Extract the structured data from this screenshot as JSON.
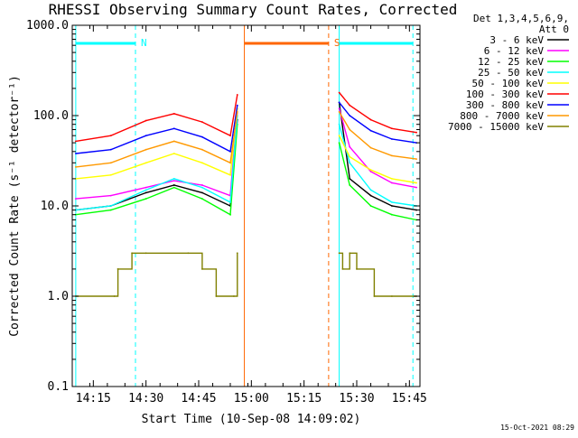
{
  "chart_data": {
    "type": "line",
    "title": "RHESSI Observing Summary Count Rates, Corrected",
    "xlabel": "Start Time (10-Sep-08 14:09:02)",
    "ylabel": "Corrected Count Rate (s⁻¹ detector⁻¹)",
    "yscale": "log",
    "xlim": [
      "14:09",
      "15:48"
    ],
    "ylim": [
      0.1,
      1000
    ],
    "x_ticks": [
      "14:15",
      "14:30",
      "14:45",
      "15:00",
      "15:15",
      "15:30",
      "15:45"
    ],
    "y_ticks": [
      "0.1",
      "1.0",
      "10.0",
      "100.0",
      "1000.0"
    ],
    "legend_header": [
      "Det 1,3,4,5,6,9,",
      "Att 0"
    ],
    "legend_position": "right",
    "series": [
      {
        "name": "3 - 6 keV",
        "color": "#000000",
        "x": [
          "14:10",
          "14:20",
          "14:30",
          "14:38",
          "14:46",
          "14:54",
          "14:56",
          "15:25",
          "15:28",
          "15:34",
          "15:40",
          "15:47"
        ],
        "y": [
          9,
          10,
          14,
          17,
          14,
          10,
          90,
          140,
          20,
          13,
          10,
          9
        ]
      },
      {
        "name": "6 - 12 keV",
        "color": "#ff00ff",
        "x": [
          "14:10",
          "14:20",
          "14:30",
          "14:38",
          "14:46",
          "14:54",
          "14:56",
          "15:25",
          "15:28",
          "15:34",
          "15:40",
          "15:47"
        ],
        "y": [
          12,
          13,
          16,
          19,
          17,
          13,
          110,
          120,
          45,
          24,
          18,
          16
        ]
      },
      {
        "name": "12 - 25 keV",
        "color": "#00ff00",
        "x": [
          "14:10",
          "14:20",
          "14:30",
          "14:38",
          "14:46",
          "14:54",
          "14:56",
          "15:25",
          "15:28",
          "15:34",
          "15:40",
          "15:47"
        ],
        "y": [
          8,
          9,
          12,
          16,
          12,
          8,
          80,
          50,
          17,
          10,
          8,
          7
        ]
      },
      {
        "name": "25 - 50 keV",
        "color": "#00ffff",
        "x": [
          "14:10",
          "14:20",
          "14:30",
          "14:38",
          "14:46",
          "14:54",
          "14:56",
          "15:25",
          "15:28",
          "15:34",
          "15:40",
          "15:47"
        ],
        "y": [
          9,
          10,
          15,
          20,
          16,
          11,
          100,
          80,
          30,
          15,
          11,
          10
        ]
      },
      {
        "name": "50 - 100 keV",
        "color": "#ffff00",
        "x": [
          "14:10",
          "14:20",
          "14:30",
          "14:38",
          "14:46",
          "14:54",
          "14:56",
          "15:25",
          "15:28",
          "15:34",
          "15:40",
          "15:47"
        ],
        "y": [
          20,
          22,
          30,
          38,
          30,
          22,
          120,
          60,
          35,
          25,
          20,
          18
        ]
      },
      {
        "name": "100 - 300 keV",
        "color": "#ff0000",
        "x": [
          "14:10",
          "14:20",
          "14:30",
          "14:38",
          "14:46",
          "14:54",
          "14:56",
          "15:25",
          "15:28",
          "15:34",
          "15:40",
          "15:47"
        ],
        "y": [
          52,
          60,
          88,
          105,
          85,
          60,
          170,
          180,
          130,
          90,
          72,
          65
        ]
      },
      {
        "name": "300 - 800 keV",
        "color": "#0000ff",
        "x": [
          "14:10",
          "14:20",
          "14:30",
          "14:38",
          "14:46",
          "14:54",
          "14:56",
          "15:25",
          "15:28",
          "15:34",
          "15:40",
          "15:47"
        ],
        "y": [
          38,
          42,
          60,
          72,
          58,
          40,
          130,
          140,
          100,
          68,
          55,
          50
        ]
      },
      {
        "name": "800 - 7000 keV",
        "color": "#ff9900",
        "x": [
          "14:10",
          "14:20",
          "14:30",
          "14:38",
          "14:46",
          "14:54",
          "14:56",
          "15:25",
          "15:28",
          "15:34",
          "15:40",
          "15:47"
        ],
        "y": [
          27,
          30,
          42,
          52,
          42,
          30,
          110,
          110,
          70,
          44,
          36,
          33
        ]
      },
      {
        "name": "7000 - 15000 keV",
        "color": "#808000",
        "x": [
          "14:10",
          "14:21",
          "14:22",
          "14:26",
          "14:30",
          "14:42",
          "14:46",
          "14:50",
          "14:55",
          "14:56",
          "15:25",
          "15:26",
          "15:28",
          "15:30",
          "15:35",
          "15:40",
          "15:47"
        ],
        "y": [
          1,
          1,
          2,
          3,
          3,
          3,
          2,
          1,
          1,
          3,
          3,
          2,
          3,
          2,
          1,
          1,
          1
        ]
      }
    ],
    "annotations": [
      {
        "label": "N",
        "color": "#00ffff",
        "x_start": "14:10",
        "x_end": "14:27"
      },
      {
        "label": "S",
        "color": "#ff6600",
        "x_start": "14:58",
        "x_end": "15:22"
      },
      {
        "label": "",
        "color": "#00ffff",
        "x_start": "15:25",
        "x_end": "15:46"
      }
    ],
    "vertical_markers": [
      {
        "x": "14:10",
        "color": "#00ffff",
        "style": "solid"
      },
      {
        "x": "14:27",
        "color": "#00ffff",
        "style": "dashed"
      },
      {
        "x": "14:58",
        "color": "#ff6600",
        "style": "solid"
      },
      {
        "x": "15:22",
        "color": "#ff6600",
        "style": "dashed"
      },
      {
        "x": "15:25",
        "color": "#00ffff",
        "style": "solid"
      },
      {
        "x": "15:46",
        "color": "#00ffff",
        "style": "dashed"
      }
    ]
  },
  "timestamp": "15-Oct-2021 08:29"
}
